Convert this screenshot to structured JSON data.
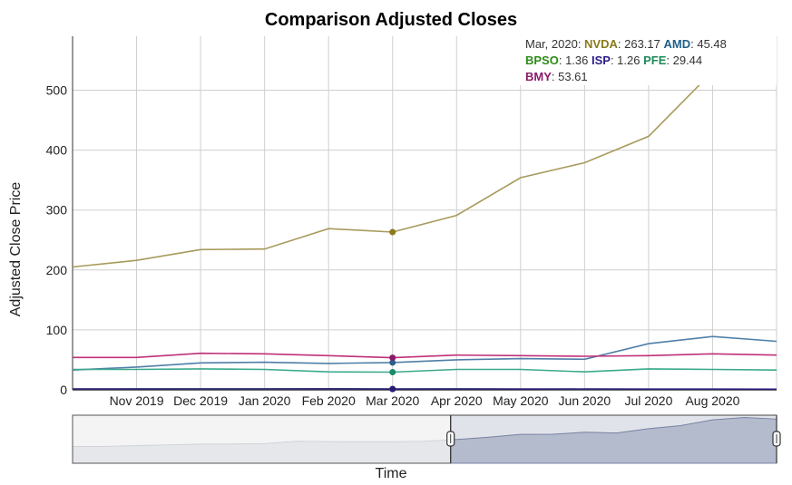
{
  "chart_data": {
    "type": "line",
    "title": "Comparison Adjusted Closes",
    "xlabel": "Time",
    "ylabel": "Adjusted Close Price",
    "ylim": [
      0,
      590
    ],
    "y_ticks": [
      0,
      100,
      200,
      300,
      400,
      500
    ],
    "grid": true,
    "x_tick_labels": [
      "Nov 2019",
      "Dec 2019",
      "Jan 2020",
      "Feb 2020",
      "Mar 2020",
      "Apr 2020",
      "May 2020",
      "Jun 2020",
      "Jul 2020",
      "Aug 2020"
    ],
    "categories": [
      "2019-10",
      "2019-11",
      "2019-12",
      "2020-01",
      "2020-02",
      "2020-03",
      "2020-04",
      "2020-05",
      "2020-06",
      "2020-07",
      "2020-08",
      "2020-09"
    ],
    "highlight_index": 5,
    "series": [
      {
        "name": "NVDA",
        "color": "#a89a5c",
        "marker_color": "#8a7a1a",
        "values": [
          205,
          216,
          234,
          235,
          269,
          263.17,
          291,
          354,
          379,
          423,
          531,
          540
        ]
      },
      {
        "name": "AMD",
        "color": "#4f7fa8",
        "marker_color": "#2a5f8a",
        "values": [
          33,
          38,
          45,
          46,
          44,
          45.48,
          50,
          52,
          51,
          77,
          89,
          81
        ]
      },
      {
        "name": "BPSO",
        "color": "#2f7a3a",
        "marker_color": "#2f7a3a",
        "values": [
          1.2,
          1.3,
          1.4,
          1.4,
          1.5,
          1.36,
          1.3,
          1.2,
          1.1,
          1.0,
          1.1,
          1.0
        ]
      },
      {
        "name": "ISP",
        "color": "#2a1a7a",
        "marker_color": "#2a1a7a",
        "values": [
          1.4,
          1.4,
          1.5,
          1.5,
          1.6,
          1.26,
          1.3,
          1.2,
          1.3,
          1.2,
          1.2,
          1.1
        ]
      },
      {
        "name": "PFE",
        "color": "#3aaa8a",
        "marker_color": "#1a8a6a",
        "values": [
          34,
          34,
          35,
          34,
          30,
          29.44,
          34,
          34,
          30,
          35,
          34,
          33
        ]
      },
      {
        "name": "BMY",
        "color": "#c0307a",
        "marker_color": "#8a1a6a",
        "values": [
          54,
          54,
          61,
          60,
          57,
          53.61,
          58,
          57,
          56,
          57,
          60,
          58
        ]
      }
    ],
    "legend": {
      "placement": "top-right",
      "date": "Mar, 2020",
      "entries": [
        {
          "symbol": "NVDA",
          "value": "263.17",
          "color": "#8a7a1a"
        },
        {
          "symbol": "AMD",
          "value": "45.48",
          "color": "#1f5f8a"
        },
        {
          "symbol": "BPSO",
          "value": "1.36",
          "color": "#2f8a1a"
        },
        {
          "symbol": "ISP",
          "value": "1.26",
          "color": "#2a1a8a"
        },
        {
          "symbol": "PFE",
          "value": "29.44",
          "color": "#1f8a5a"
        },
        {
          "symbol": "BMY",
          "value": "53.61",
          "color": "#8a1a6a"
        }
      ]
    },
    "range_selector": {
      "overview_values": [
        205,
        205,
        216,
        225,
        234,
        235,
        240,
        269,
        265,
        263,
        263,
        268,
        291,
        320,
        354,
        355,
        379,
        370,
        423,
        460,
        531,
        560,
        540
      ],
      "selected_from_fraction": 0.537,
      "selected_to_fraction": 1.0
    }
  }
}
